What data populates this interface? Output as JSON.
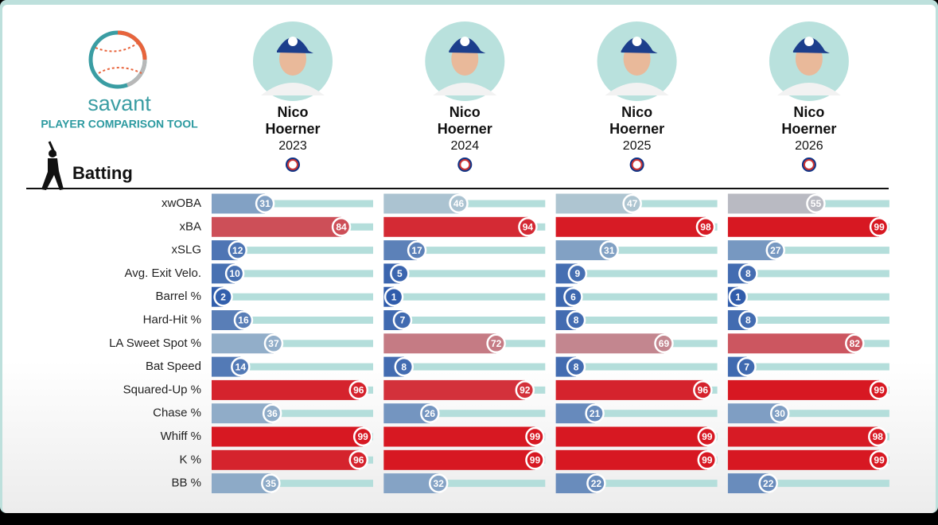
{
  "logo": {
    "name": "savant",
    "subtitle": "PLAYER COMPARISON TOOL"
  },
  "section": "Batting",
  "percentile_range": [
    0,
    100
  ],
  "metrics": [
    "xwOBA",
    "xBA",
    "xSLG",
    "Avg. Exit Velo.",
    "Barrel %",
    "Hard-Hit %",
    "LA Sweet Spot %",
    "Bat Speed",
    "Squared-Up %",
    "Chase %",
    "Whiff %",
    "K %",
    "BB %"
  ],
  "players": [
    {
      "first": "Nico",
      "last": "Hoerner",
      "season": "2023",
      "percentiles": [
        31,
        84,
        12,
        10,
        2,
        16,
        37,
        14,
        96,
        36,
        99,
        96,
        35
      ]
    },
    {
      "first": "Nico",
      "last": "Hoerner",
      "season": "2024",
      "percentiles": [
        46,
        94,
        17,
        5,
        1,
        7,
        72,
        8,
        92,
        26,
        99,
        99,
        32
      ]
    },
    {
      "first": "Nico",
      "last": "Hoerner",
      "season": "2025",
      "percentiles": [
        47,
        98,
        31,
        9,
        6,
        8,
        69,
        8,
        96,
        21,
        99,
        99,
        22
      ]
    },
    {
      "first": "Nico",
      "last": "Hoerner",
      "season": "2026",
      "percentiles": [
        55,
        99,
        27,
        8,
        1,
        8,
        82,
        7,
        99,
        30,
        98,
        99,
        22
      ]
    }
  ]
}
